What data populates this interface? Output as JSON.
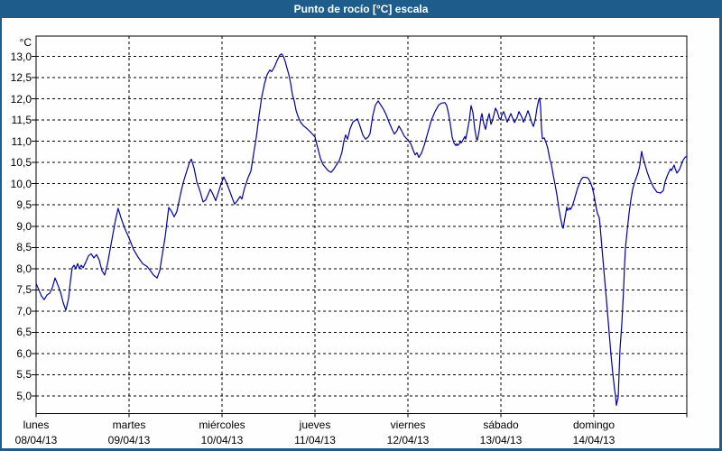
{
  "window": {
    "title": "Punto de rocío [°C] escala",
    "title_bar_color": "#1E5C8C",
    "border_color": "#1E5C8C",
    "background_color": "#FEFEFE"
  },
  "chart_data": {
    "type": "line",
    "title": "Punto de rocío [°C] escala",
    "series_name": "Punto de rocío",
    "unit_label": "°C",
    "line_color": "#0000A8",
    "grid_color": "#000000",
    "grid_style": "dashed",
    "legend_position": "none",
    "ylim": [
      5.0,
      13.0
    ],
    "ytick_step": 0.5,
    "ytick_labels": [
      "13,0",
      "12,5",
      "12,0",
      "11,5",
      "11,0",
      "10,5",
      "10,0",
      "9,5",
      "9,0",
      "8,5",
      "8,0",
      "7,5",
      "7,0",
      "6,5",
      "6,0",
      "5,5",
      "5,0"
    ],
    "x_days": [
      {
        "name": "lunes",
        "date": "08/04/13"
      },
      {
        "name": "martes",
        "date": "09/04/13"
      },
      {
        "name": "miércoles",
        "date": "10/04/13"
      },
      {
        "name": "jueves",
        "date": "11/04/13"
      },
      {
        "name": "viernes",
        "date": "12/04/13"
      },
      {
        "name": "sábado",
        "date": "13/04/13"
      },
      {
        "name": "domingo",
        "date": "14/04/13"
      }
    ],
    "x_units": "days from lunes 08/04/13 00:00",
    "points": [
      [
        0.0,
        7.65
      ],
      [
        0.029,
        7.5
      ],
      [
        0.058,
        7.35
      ],
      [
        0.087,
        7.27
      ],
      [
        0.117,
        7.38
      ],
      [
        0.146,
        7.42
      ],
      [
        0.175,
        7.55
      ],
      [
        0.204,
        7.78
      ],
      [
        0.233,
        7.62
      ],
      [
        0.262,
        7.45
      ],
      [
        0.291,
        7.2
      ],
      [
        0.32,
        7.02
      ],
      [
        0.35,
        7.3
      ],
      [
        0.369,
        7.7
      ],
      [
        0.388,
        8.02
      ],
      [
        0.408,
        8.08
      ],
      [
        0.427,
        8.0
      ],
      [
        0.447,
        8.12
      ],
      [
        0.466,
        8.0
      ],
      [
        0.485,
        8.08
      ],
      [
        0.505,
        8.02
      ],
      [
        0.534,
        8.15
      ],
      [
        0.563,
        8.3
      ],
      [
        0.592,
        8.35
      ],
      [
        0.621,
        8.25
      ],
      [
        0.65,
        8.33
      ],
      [
        0.68,
        8.2
      ],
      [
        0.709,
        7.95
      ],
      [
        0.738,
        7.85
      ],
      [
        0.767,
        8.1
      ],
      [
        0.796,
        8.45
      ],
      [
        0.825,
        8.8
      ],
      [
        0.854,
        9.15
      ],
      [
        0.883,
        9.42
      ],
      [
        0.913,
        9.2
      ],
      [
        0.942,
        9.02
      ],
      [
        0.971,
        8.86
      ],
      [
        1.0,
        8.72
      ],
      [
        1.049,
        8.45
      ],
      [
        1.097,
        8.27
      ],
      [
        1.146,
        8.12
      ],
      [
        1.194,
        8.05
      ],
      [
        1.223,
        7.97
      ],
      [
        1.262,
        7.85
      ],
      [
        1.301,
        7.78
      ],
      [
        1.33,
        7.95
      ],
      [
        1.359,
        8.35
      ],
      [
        1.388,
        8.75
      ],
      [
        1.408,
        9.1
      ],
      [
        1.427,
        9.44
      ],
      [
        1.456,
        9.35
      ],
      [
        1.485,
        9.22
      ],
      [
        1.515,
        9.35
      ],
      [
        1.534,
        9.55
      ],
      [
        1.563,
        9.85
      ],
      [
        1.592,
        10.1
      ],
      [
        1.621,
        10.3
      ],
      [
        1.65,
        10.5
      ],
      [
        1.67,
        10.58
      ],
      [
        1.699,
        10.37
      ],
      [
        1.728,
        10.05
      ],
      [
        1.767,
        9.8
      ],
      [
        1.796,
        9.57
      ],
      [
        1.825,
        9.62
      ],
      [
        1.845,
        9.72
      ],
      [
        1.874,
        9.87
      ],
      [
        1.903,
        9.75
      ],
      [
        1.932,
        9.6
      ],
      [
        1.961,
        9.8
      ],
      [
        1.99,
        10.0
      ],
      [
        2.019,
        10.16
      ],
      [
        2.049,
        10.02
      ],
      [
        2.087,
        9.8
      ],
      [
        2.117,
        9.62
      ],
      [
        2.136,
        9.52
      ],
      [
        2.165,
        9.6
      ],
      [
        2.194,
        9.7
      ],
      [
        2.214,
        9.64
      ],
      [
        2.243,
        9.9
      ],
      [
        2.282,
        10.15
      ],
      [
        2.311,
        10.3
      ],
      [
        2.34,
        10.7
      ],
      [
        2.369,
        11.1
      ],
      [
        2.398,
        11.6
      ],
      [
        2.427,
        12.04
      ],
      [
        2.456,
        12.35
      ],
      [
        2.485,
        12.57
      ],
      [
        2.515,
        12.68
      ],
      [
        2.534,
        12.64
      ],
      [
        2.563,
        12.75
      ],
      [
        2.592,
        12.9
      ],
      [
        2.621,
        13.03
      ],
      [
        2.641,
        13.06
      ],
      [
        2.66,
        13.0
      ],
      [
        2.68,
        12.88
      ],
      [
        2.699,
        12.72
      ],
      [
        2.718,
        12.57
      ],
      [
        2.738,
        12.37
      ],
      [
        2.757,
        12.1
      ],
      [
        2.777,
        11.95
      ],
      [
        2.796,
        11.73
      ],
      [
        2.816,
        11.6
      ],
      [
        2.845,
        11.45
      ],
      [
        2.874,
        11.37
      ],
      [
        2.913,
        11.3
      ],
      [
        2.951,
        11.22
      ],
      [
        2.981,
        11.15
      ],
      [
        3.0,
        11.1
      ],
      [
        3.029,
        10.85
      ],
      [
        3.058,
        10.6
      ],
      [
        3.087,
        10.45
      ],
      [
        3.117,
        10.37
      ],
      [
        3.146,
        10.3
      ],
      [
        3.175,
        10.27
      ],
      [
        3.204,
        10.35
      ],
      [
        3.233,
        10.45
      ],
      [
        3.262,
        10.55
      ],
      [
        3.291,
        10.75
      ],
      [
        3.311,
        11.0
      ],
      [
        3.33,
        11.15
      ],
      [
        3.35,
        11.05
      ],
      [
        3.379,
        11.3
      ],
      [
        3.408,
        11.45
      ],
      [
        3.437,
        11.5
      ],
      [
        3.456,
        11.53
      ],
      [
        3.485,
        11.35
      ],
      [
        3.515,
        11.15
      ],
      [
        3.544,
        11.05
      ],
      [
        3.573,
        11.1
      ],
      [
        3.592,
        11.18
      ],
      [
        3.621,
        11.6
      ],
      [
        3.65,
        11.85
      ],
      [
        3.68,
        11.95
      ],
      [
        3.709,
        11.85
      ],
      [
        3.738,
        11.75
      ],
      [
        3.767,
        11.62
      ],
      [
        3.796,
        11.45
      ],
      [
        3.825,
        11.3
      ],
      [
        3.854,
        11.17
      ],
      [
        3.883,
        11.25
      ],
      [
        3.903,
        11.36
      ],
      [
        3.932,
        11.25
      ],
      [
        3.961,
        11.12
      ],
      [
        4.0,
        11.03
      ],
      [
        4.029,
        10.95
      ],
      [
        4.058,
        10.78
      ],
      [
        4.078,
        10.68
      ],
      [
        4.097,
        10.73
      ],
      [
        4.117,
        10.62
      ],
      [
        4.146,
        10.72
      ],
      [
        4.175,
        10.9
      ],
      [
        4.214,
        11.2
      ],
      [
        4.252,
        11.5
      ],
      [
        4.291,
        11.7
      ],
      [
        4.33,
        11.85
      ],
      [
        4.359,
        11.9
      ],
      [
        4.398,
        11.91
      ],
      [
        4.417,
        11.84
      ],
      [
        4.437,
        11.65
      ],
      [
        4.456,
        11.4
      ],
      [
        4.476,
        11.1
      ],
      [
        4.495,
        10.96
      ],
      [
        4.515,
        10.9
      ],
      [
        4.524,
        10.94
      ],
      [
        4.534,
        10.9
      ],
      [
        4.553,
        10.94
      ],
      [
        4.563,
        11.01
      ],
      [
        4.573,
        10.96
      ],
      [
        4.592,
        11.03
      ],
      [
        4.612,
        11.11
      ],
      [
        4.621,
        11.05
      ],
      [
        4.641,
        11.26
      ],
      [
        4.66,
        11.5
      ],
      [
        4.68,
        11.84
      ],
      [
        4.699,
        11.68
      ],
      [
        4.718,
        11.3
      ],
      [
        4.738,
        11.05
      ],
      [
        4.748,
        11.03
      ],
      [
        4.767,
        11.26
      ],
      [
        4.786,
        11.57
      ],
      [
        4.796,
        11.65
      ],
      [
        4.816,
        11.42
      ],
      [
        4.835,
        11.28
      ],
      [
        4.854,
        11.5
      ],
      [
        4.874,
        11.65
      ],
      [
        4.893,
        11.4
      ],
      [
        4.903,
        11.45
      ],
      [
        4.922,
        11.6
      ],
      [
        4.942,
        11.78
      ],
      [
        4.961,
        11.7
      ],
      [
        4.981,
        11.55
      ],
      [
        5.0,
        11.5
      ],
      [
        5.01,
        11.62
      ],
      [
        5.029,
        11.7
      ],
      [
        5.049,
        11.58
      ],
      [
        5.068,
        11.45
      ],
      [
        5.087,
        11.55
      ],
      [
        5.107,
        11.65
      ],
      [
        5.126,
        11.55
      ],
      [
        5.146,
        11.44
      ],
      [
        5.175,
        11.56
      ],
      [
        5.194,
        11.7
      ],
      [
        5.223,
        11.58
      ],
      [
        5.243,
        11.45
      ],
      [
        5.272,
        11.6
      ],
      [
        5.291,
        11.72
      ],
      [
        5.311,
        11.6
      ],
      [
        5.33,
        11.45
      ],
      [
        5.35,
        11.35
      ],
      [
        5.369,
        11.5
      ],
      [
        5.388,
        11.78
      ],
      [
        5.408,
        11.98
      ],
      [
        5.417,
        12.02
      ],
      [
        5.427,
        11.8
      ],
      [
        5.437,
        11.3
      ],
      [
        5.447,
        11.06
      ],
      [
        5.466,
        11.08
      ],
      [
        5.485,
        10.97
      ],
      [
        5.505,
        10.83
      ],
      [
        5.524,
        10.6
      ],
      [
        5.544,
        10.45
      ],
      [
        5.563,
        10.2
      ],
      [
        5.583,
        9.98
      ],
      [
        5.602,
        9.75
      ],
      [
        5.621,
        9.45
      ],
      [
        5.641,
        9.2
      ],
      [
        5.66,
        9.0
      ],
      [
        5.67,
        8.95
      ],
      [
        5.689,
        9.2
      ],
      [
        5.709,
        9.45
      ],
      [
        5.718,
        9.37
      ],
      [
        5.738,
        9.43
      ],
      [
        5.748,
        9.39
      ],
      [
        5.767,
        9.47
      ],
      [
        5.786,
        9.6
      ],
      [
        5.806,
        9.75
      ],
      [
        5.825,
        9.9
      ],
      [
        5.845,
        10.0
      ],
      [
        5.864,
        10.1
      ],
      [
        5.883,
        10.15
      ],
      [
        5.922,
        10.15
      ],
      [
        5.942,
        10.12
      ],
      [
        5.961,
        10.04
      ],
      [
        5.981,
        9.93
      ],
      [
        6.0,
        9.75
      ],
      [
        6.019,
        9.5
      ],
      [
        6.039,
        9.3
      ],
      [
        6.058,
        9.2
      ],
      [
        6.068,
        8.99
      ],
      [
        6.087,
        8.49
      ],
      [
        6.107,
        7.99
      ],
      [
        6.126,
        7.5
      ],
      [
        6.146,
        7.0
      ],
      [
        6.165,
        6.48
      ],
      [
        6.184,
        5.97
      ],
      [
        6.204,
        5.53
      ],
      [
        6.223,
        5.15
      ],
      [
        6.233,
        5.01
      ],
      [
        6.243,
        4.78
      ],
      [
        6.262,
        4.98
      ],
      [
        6.272,
        5.55
      ],
      [
        6.282,
        6.11
      ],
      [
        6.301,
        6.7
      ],
      [
        6.32,
        7.53
      ],
      [
        6.33,
        8.06
      ],
      [
        6.34,
        8.49
      ],
      [
        6.359,
        8.91
      ],
      [
        6.379,
        9.3
      ],
      [
        6.398,
        9.62
      ],
      [
        6.417,
        9.87
      ],
      [
        6.437,
        10.03
      ],
      [
        6.456,
        10.14
      ],
      [
        6.476,
        10.26
      ],
      [
        6.495,
        10.44
      ],
      [
        6.505,
        10.62
      ],
      [
        6.515,
        10.76
      ],
      [
        6.524,
        10.65
      ],
      [
        6.544,
        10.5
      ],
      [
        6.573,
        10.28
      ],
      [
        6.602,
        10.1
      ],
      [
        6.641,
        9.92
      ],
      [
        6.68,
        9.8
      ],
      [
        6.718,
        9.78
      ],
      [
        6.748,
        9.84
      ],
      [
        6.767,
        10.05
      ],
      [
        6.786,
        10.17
      ],
      [
        6.806,
        10.27
      ],
      [
        6.825,
        10.35
      ],
      [
        6.835,
        10.31
      ],
      [
        6.864,
        10.44
      ],
      [
        6.874,
        10.36
      ],
      [
        6.893,
        10.25
      ],
      [
        6.922,
        10.34
      ],
      [
        6.942,
        10.45
      ],
      [
        6.961,
        10.56
      ],
      [
        6.981,
        10.62
      ],
      [
        7.0,
        10.65
      ]
    ]
  }
}
